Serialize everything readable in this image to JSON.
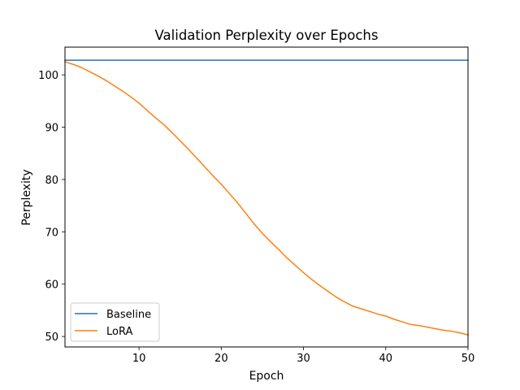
{
  "chart_data": {
    "type": "line",
    "title": "Validation Perplexity over Epochs",
    "xlabel": "Epoch",
    "ylabel": "Perplexity",
    "xlim": [
      1,
      50
    ],
    "ylim": [
      48,
      105.3
    ],
    "xticks": [
      10,
      20,
      30,
      40,
      50
    ],
    "yticks": [
      50,
      60,
      70,
      80,
      90,
      100
    ],
    "grid": false,
    "legend": {
      "position": "lower-left"
    },
    "x": [
      1,
      2,
      3,
      4,
      5,
      6,
      7,
      8,
      9,
      10,
      11,
      12,
      13,
      14,
      15,
      16,
      17,
      18,
      19,
      20,
      21,
      22,
      23,
      24,
      25,
      26,
      27,
      28,
      29,
      30,
      31,
      32,
      33,
      34,
      35,
      36,
      37,
      38,
      39,
      40,
      41,
      42,
      43,
      44,
      45,
      46,
      47,
      48,
      49,
      50
    ],
    "series": [
      {
        "name": "Baseline",
        "color": "#1f77b4",
        "values": [
          102.8,
          102.8,
          102.8,
          102.8,
          102.8,
          102.8,
          102.8,
          102.8,
          102.8,
          102.8,
          102.8,
          102.8,
          102.8,
          102.8,
          102.8,
          102.8,
          102.8,
          102.8,
          102.8,
          102.8,
          102.8,
          102.8,
          102.8,
          102.8,
          102.8,
          102.8,
          102.8,
          102.8,
          102.8,
          102.8,
          102.8,
          102.8,
          102.8,
          102.8,
          102.8,
          102.8,
          102.8,
          102.8,
          102.8,
          102.8,
          102.8,
          102.8,
          102.8,
          102.8,
          102.8,
          102.8,
          102.8,
          102.8,
          102.8,
          102.8
        ]
      },
      {
        "name": "LoRA",
        "color": "#ff7f0e",
        "values": [
          102.5,
          102.0,
          101.4,
          100.6,
          99.8,
          98.9,
          97.9,
          96.9,
          95.8,
          94.6,
          93.2,
          91.8,
          90.5,
          89.0,
          87.4,
          85.8,
          84.1,
          82.4,
          80.7,
          79.1,
          77.3,
          75.5,
          73.5,
          71.5,
          69.7,
          68.1,
          66.6,
          65.0,
          63.6,
          62.2,
          60.9,
          59.7,
          58.6,
          57.5,
          56.6,
          55.8,
          55.3,
          54.8,
          54.3,
          53.9,
          53.3,
          52.8,
          52.3,
          52.1,
          51.8,
          51.5,
          51.2,
          51.0,
          50.7,
          50.3
        ]
      }
    ]
  }
}
